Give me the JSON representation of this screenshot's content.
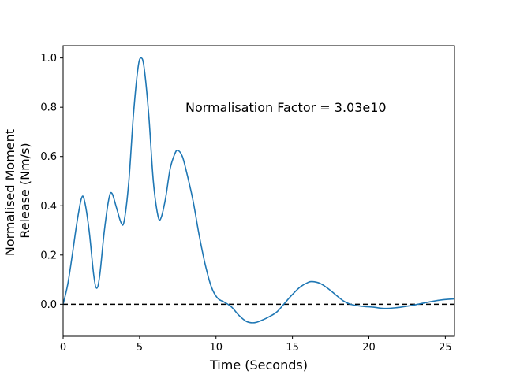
{
  "chart_data": {
    "type": "line",
    "title": "",
    "xlabel": "Time (Seconds)",
    "ylabel_lines": [
      "Normalised Moment",
      "Release (Nm/s)"
    ],
    "xlim": [
      0,
      25.6
    ],
    "ylim": [
      -0.13,
      1.05
    ],
    "xticks": [
      0,
      5,
      10,
      15,
      20,
      25
    ],
    "yticks": [
      0.0,
      0.2,
      0.4,
      0.6,
      0.8,
      1.0
    ],
    "xtick_labels": [
      "0",
      "5",
      "10",
      "15",
      "20",
      "25"
    ],
    "ytick_labels": [
      "0.0",
      "0.2",
      "0.4",
      "0.6",
      "0.8",
      "1.0"
    ],
    "grid": false,
    "annotation": {
      "text": "Normalisation Factor = 3.03e10",
      "x": 8.0,
      "y": 0.8
    },
    "reference_line": {
      "y": 0.0,
      "style": "dashed",
      "color": "#000000"
    },
    "series": [
      {
        "color": "#1f77b4",
        "points": [
          [
            0,
            0.0
          ],
          [
            0.3,
            0.08
          ],
          [
            0.6,
            0.2
          ],
          [
            0.9,
            0.33
          ],
          [
            1.2,
            0.43
          ],
          [
            1.4,
            0.42
          ],
          [
            1.7,
            0.3
          ],
          [
            2.0,
            0.12
          ],
          [
            2.2,
            0.065
          ],
          [
            2.4,
            0.12
          ],
          [
            2.7,
            0.3
          ],
          [
            3.0,
            0.43
          ],
          [
            3.2,
            0.45
          ],
          [
            3.5,
            0.39
          ],
          [
            3.8,
            0.33
          ],
          [
            4.0,
            0.34
          ],
          [
            4.3,
            0.5
          ],
          [
            4.6,
            0.77
          ],
          [
            4.9,
            0.96
          ],
          [
            5.1,
            1.0
          ],
          [
            5.3,
            0.96
          ],
          [
            5.6,
            0.77
          ],
          [
            5.9,
            0.5
          ],
          [
            6.2,
            0.36
          ],
          [
            6.4,
            0.35
          ],
          [
            6.7,
            0.43
          ],
          [
            7.0,
            0.55
          ],
          [
            7.3,
            0.61
          ],
          [
            7.5,
            0.625
          ],
          [
            7.8,
            0.6
          ],
          [
            8.1,
            0.53
          ],
          [
            8.5,
            0.42
          ],
          [
            8.9,
            0.28
          ],
          [
            9.3,
            0.16
          ],
          [
            9.7,
            0.07
          ],
          [
            10.1,
            0.025
          ],
          [
            10.5,
            0.01
          ],
          [
            11.0,
            -0.01
          ],
          [
            11.5,
            -0.045
          ],
          [
            12.0,
            -0.07
          ],
          [
            12.5,
            -0.075
          ],
          [
            13.0,
            -0.065
          ],
          [
            13.5,
            -0.05
          ],
          [
            14.0,
            -0.03
          ],
          [
            14.5,
            0.005
          ],
          [
            15.0,
            0.04
          ],
          [
            15.5,
            0.07
          ],
          [
            16.0,
            0.088
          ],
          [
            16.3,
            0.092
          ],
          [
            16.8,
            0.085
          ],
          [
            17.3,
            0.065
          ],
          [
            17.8,
            0.04
          ],
          [
            18.3,
            0.015
          ],
          [
            18.8,
            0.0
          ],
          [
            19.5,
            -0.008
          ],
          [
            20.3,
            -0.012
          ],
          [
            21.0,
            -0.017
          ],
          [
            21.8,
            -0.014
          ],
          [
            22.5,
            -0.008
          ],
          [
            23.2,
            0.0
          ],
          [
            24.0,
            0.01
          ],
          [
            24.8,
            0.018
          ],
          [
            25.6,
            0.022
          ]
        ]
      }
    ]
  }
}
